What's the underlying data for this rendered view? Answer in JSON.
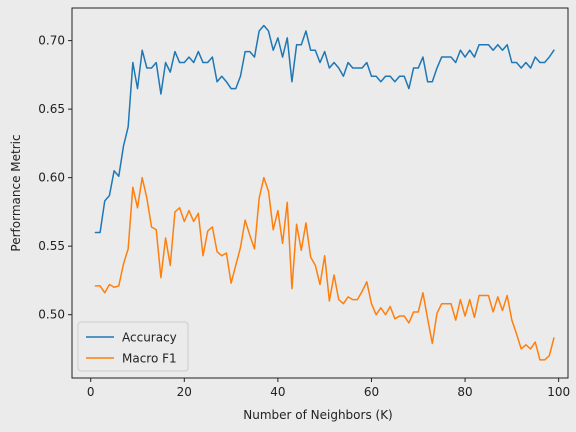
{
  "colors": {
    "background": "#ebebeb",
    "axes_face": "#ebebeb",
    "axes_edge": "#222222",
    "accuracy": "#1f77b4",
    "macro_f1": "#ff7f0e"
  },
  "chart_data": {
    "type": "line",
    "title": "",
    "xlabel": "Number of Neighbors (K)",
    "ylabel": "Performance Metric",
    "xlim": [
      -4,
      102
    ],
    "ylim": [
      0.4538,
      0.7238
    ],
    "x_ticks": [
      0,
      20,
      40,
      60,
      80,
      100
    ],
    "y_ticks": [
      0.5,
      0.55,
      0.6,
      0.65,
      0.7
    ],
    "x_tick_labels": [
      "0",
      "20",
      "40",
      "60",
      "80",
      "100"
    ],
    "y_tick_labels": [
      "0.50",
      "0.55",
      "0.60",
      "0.65",
      "0.70"
    ],
    "grid": false,
    "legend_position": "lower-left",
    "x": [
      1,
      2,
      3,
      4,
      5,
      6,
      7,
      8,
      9,
      10,
      11,
      12,
      13,
      14,
      15,
      16,
      17,
      18,
      19,
      20,
      21,
      22,
      23,
      24,
      25,
      26,
      27,
      28,
      29,
      30,
      31,
      32,
      33,
      34,
      35,
      36,
      37,
      38,
      39,
      40,
      41,
      42,
      43,
      44,
      45,
      46,
      47,
      48,
      49,
      50,
      51,
      52,
      53,
      54,
      55,
      56,
      57,
      58,
      59,
      60,
      61,
      62,
      63,
      64,
      65,
      66,
      67,
      68,
      69,
      70,
      71,
      72,
      73,
      74,
      75,
      76,
      77,
      78,
      79,
      80,
      81,
      82,
      83,
      84,
      85,
      86,
      87,
      88,
      89,
      90,
      91,
      92,
      93,
      94,
      95,
      96,
      97,
      98,
      99
    ],
    "series": [
      {
        "name": "Accuracy",
        "color": "#1f77b4",
        "values": [
          0.56,
          0.56,
          0.583,
          0.587,
          0.605,
          0.601,
          0.623,
          0.637,
          0.684,
          0.665,
          0.693,
          0.68,
          0.68,
          0.684,
          0.661,
          0.684,
          0.677,
          0.692,
          0.684,
          0.684,
          0.688,
          0.684,
          0.692,
          0.684,
          0.684,
          0.688,
          0.67,
          0.674,
          0.67,
          0.665,
          0.665,
          0.674,
          0.692,
          0.692,
          0.688,
          0.707,
          0.711,
          0.707,
          0.693,
          0.702,
          0.688,
          0.702,
          0.67,
          0.697,
          0.697,
          0.707,
          0.693,
          0.693,
          0.684,
          0.692,
          0.68,
          0.684,
          0.68,
          0.674,
          0.684,
          0.68,
          0.68,
          0.68,
          0.684,
          0.674,
          0.674,
          0.67,
          0.674,
          0.674,
          0.67,
          0.674,
          0.674,
          0.665,
          0.68,
          0.68,
          0.688,
          0.67,
          0.67,
          0.68,
          0.688,
          0.688,
          0.688,
          0.684,
          0.693,
          0.688,
          0.693,
          0.688,
          0.697,
          0.697,
          0.697,
          0.693,
          0.697,
          0.693,
          0.697,
          0.684,
          0.684,
          0.68,
          0.684,
          0.68,
          0.688,
          0.684,
          0.684,
          0.688,
          0.693
        ]
      },
      {
        "name": "Macro F1",
        "color": "#ff7f0e",
        "values": [
          0.521,
          0.521,
          0.516,
          0.522,
          0.52,
          0.521,
          0.537,
          0.548,
          0.593,
          0.578,
          0.6,
          0.585,
          0.564,
          0.562,
          0.527,
          0.556,
          0.536,
          0.575,
          0.578,
          0.568,
          0.576,
          0.568,
          0.574,
          0.543,
          0.561,
          0.564,
          0.546,
          0.543,
          0.545,
          0.523,
          0.536,
          0.549,
          0.569,
          0.558,
          0.548,
          0.585,
          0.6,
          0.59,
          0.562,
          0.576,
          0.552,
          0.582,
          0.519,
          0.566,
          0.547,
          0.567,
          0.542,
          0.536,
          0.522,
          0.543,
          0.51,
          0.529,
          0.511,
          0.508,
          0.513,
          0.511,
          0.511,
          0.517,
          0.524,
          0.508,
          0.5,
          0.505,
          0.5,
          0.506,
          0.497,
          0.499,
          0.499,
          0.494,
          0.502,
          0.502,
          0.516,
          0.497,
          0.479,
          0.501,
          0.508,
          0.508,
          0.508,
          0.496,
          0.511,
          0.499,
          0.511,
          0.498,
          0.514,
          0.514,
          0.514,
          0.502,
          0.513,
          0.503,
          0.514,
          0.496,
          0.486,
          0.475,
          0.478,
          0.475,
          0.48,
          0.467,
          0.467,
          0.47,
          0.483
        ]
      }
    ]
  }
}
